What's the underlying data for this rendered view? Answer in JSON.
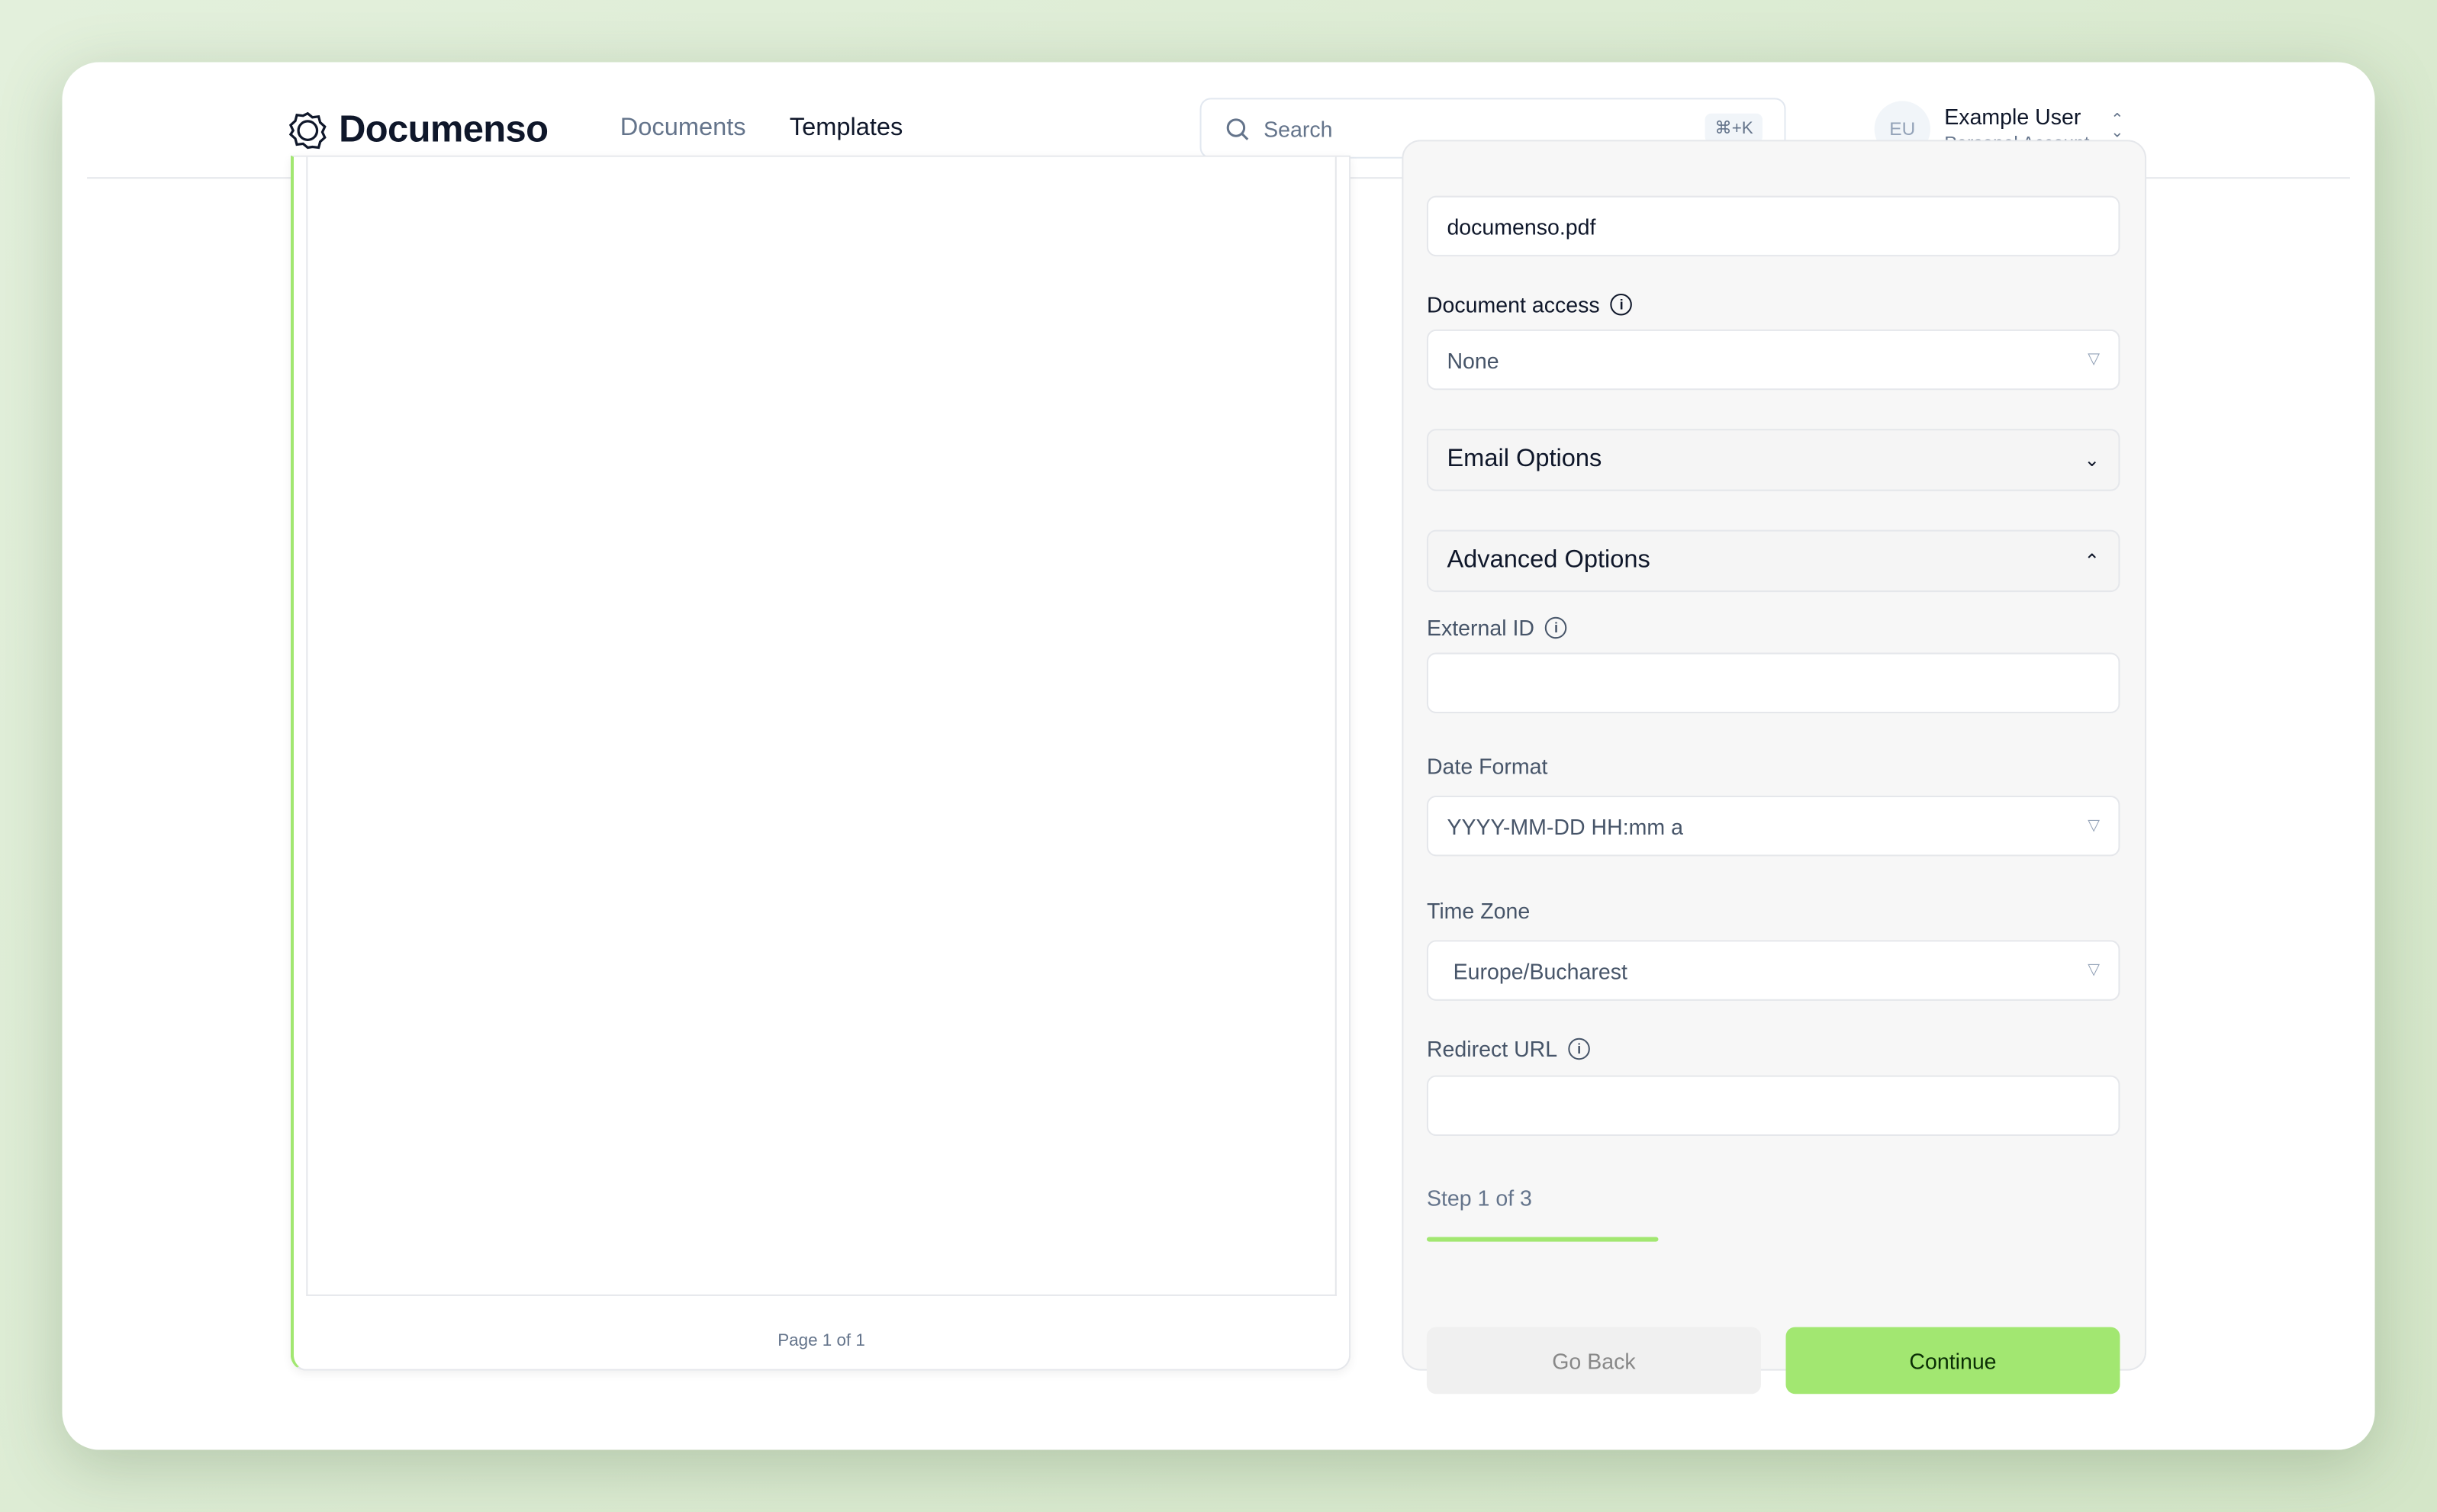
{
  "header": {
    "brand": "Documenso",
    "nav": [
      {
        "label": "Documents",
        "active": false
      },
      {
        "label": "Templates",
        "active": true
      }
    ],
    "search": {
      "placeholder": "Search",
      "shortcut": "⌘+K"
    },
    "user": {
      "initials": "EU",
      "name": "Example User",
      "account": "Personal Account"
    }
  },
  "document": {
    "page_label": "Page 1 of 1"
  },
  "form": {
    "title_value": "documenso.pdf",
    "access_label": "Document access",
    "access_value": "None",
    "email_options": "Email Options",
    "advanced_options": "Advanced Options",
    "external_id_label": "External ID",
    "external_id_value": "",
    "date_format_label": "Date Format",
    "date_format_value": "YYYY-MM-DD HH:mm a",
    "time_zone_label": "Time Zone",
    "time_zone_value": "Europe/Bucharest",
    "redirect_label": "Redirect URL",
    "redirect_value": "",
    "step_label": "Step 1 of 3",
    "step_progress": 0.333,
    "back_label": "Go Back",
    "continue_label": "Continue"
  },
  "colors": {
    "accent": "#a2e771",
    "background": "#e3f0dc"
  }
}
